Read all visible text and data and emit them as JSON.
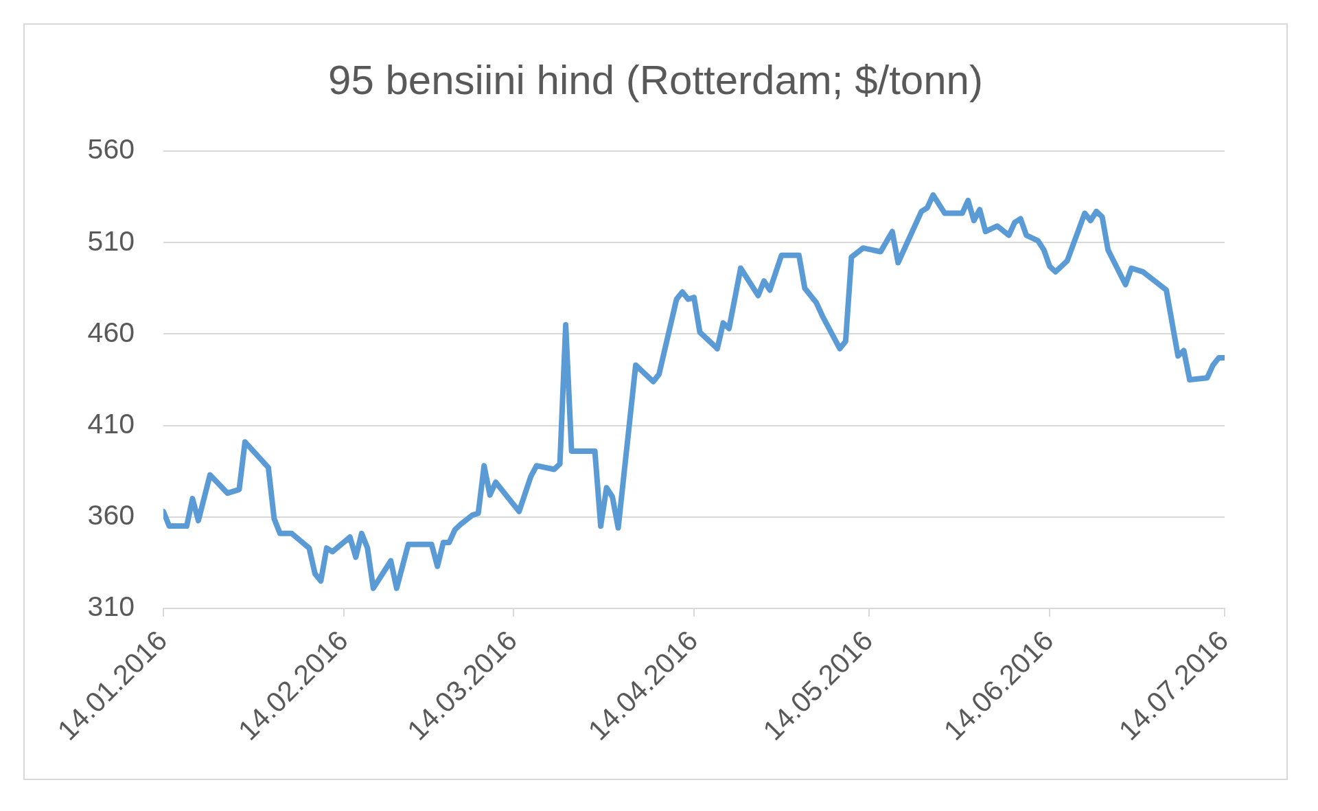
{
  "chart_data": {
    "type": "line",
    "title": "95 bensiini hind (Rotterdam; $/tonn)",
    "x": [
      "2016-01-14",
      "2016-01-15",
      "2016-01-18",
      "2016-01-19",
      "2016-01-20",
      "2016-01-22",
      "2016-01-25",
      "2016-01-27",
      "2016-01-28",
      "2016-02-01",
      "2016-02-02",
      "2016-02-03",
      "2016-02-05",
      "2016-02-08",
      "2016-02-09",
      "2016-02-10",
      "2016-02-11",
      "2016-02-12",
      "2016-02-15",
      "2016-02-16",
      "2016-02-17",
      "2016-02-18",
      "2016-02-19",
      "2016-02-22",
      "2016-02-23",
      "2016-02-25",
      "2016-02-29",
      "2016-03-01",
      "2016-03-02",
      "2016-03-03",
      "2016-03-04",
      "2016-03-05",
      "2016-03-07",
      "2016-03-08",
      "2016-03-09",
      "2016-03-10",
      "2016-03-11",
      "2016-03-15",
      "2016-03-17",
      "2016-03-18",
      "2016-03-21",
      "2016-03-22",
      "2016-03-23",
      "2016-03-24",
      "2016-03-28",
      "2016-03-29",
      "2016-03-30",
      "2016-03-31",
      "2016-04-01",
      "2016-04-04",
      "2016-04-07",
      "2016-04-08",
      "2016-04-11",
      "2016-04-12",
      "2016-04-13",
      "2016-04-14",
      "2016-04-15",
      "2016-04-18",
      "2016-04-19",
      "2016-04-20",
      "2016-04-22",
      "2016-04-25",
      "2016-04-26",
      "2016-04-27",
      "2016-04-29",
      "2016-05-02",
      "2016-05-03",
      "2016-05-05",
      "2016-05-06",
      "2016-05-09",
      "2016-05-10",
      "2016-05-11",
      "2016-05-13",
      "2016-05-16",
      "2016-05-18",
      "2016-05-19",
      "2016-05-23",
      "2016-05-24",
      "2016-05-25",
      "2016-05-27",
      "2016-05-30",
      "2016-05-31",
      "2016-06-01",
      "2016-06-02",
      "2016-06-03",
      "2016-06-05",
      "2016-06-07",
      "2016-06-08",
      "2016-06-09",
      "2016-06-10",
      "2016-06-12",
      "2016-06-13",
      "2016-06-14",
      "2016-06-15",
      "2016-06-17",
      "2016-06-20",
      "2016-06-21",
      "2016-06-22",
      "2016-06-23",
      "2016-06-24",
      "2016-06-27",
      "2016-06-28",
      "2016-06-30",
      "2016-07-02",
      "2016-07-04",
      "2016-07-06",
      "2016-07-07",
      "2016-07-08",
      "2016-07-11",
      "2016-07-12",
      "2016-07-13",
      "2016-07-14"
    ],
    "series": [
      {
        "color": "#5b9bd5",
        "values": [
          363,
          355,
          355,
          370,
          358,
          383,
          373,
          375,
          401,
          387,
          359,
          351,
          351,
          343,
          329,
          325,
          343,
          341,
          349,
          338,
          351,
          343,
          321,
          336,
          321,
          345,
          345,
          333,
          346,
          346,
          353,
          356,
          361,
          362,
          388,
          372,
          379,
          363,
          382,
          388,
          386,
          389,
          465,
          396,
          396,
          355,
          376,
          371,
          354,
          443,
          434,
          438,
          479,
          483,
          479,
          480,
          461,
          452,
          466,
          463,
          496,
          481,
          489,
          484,
          503,
          503,
          485,
          477,
          470,
          452,
          456,
          502,
          507,
          505,
          516,
          499,
          527,
          529,
          536,
          526,
          526,
          533,
          522,
          528,
          516,
          519,
          514,
          521,
          523,
          514,
          511,
          506,
          497,
          494,
          500,
          526,
          522,
          527,
          524,
          506,
          487,
          496,
          494,
          489,
          484,
          448,
          451,
          435,
          436,
          443,
          447,
          447
        ]
      }
    ],
    "xlim": [
      "2016-01-14",
      "2016-07-14"
    ],
    "xticks": [
      {
        "value": "2016-01-14",
        "label": "14.01.2016"
      },
      {
        "value": "2016-02-14",
        "label": "14.02.2016"
      },
      {
        "value": "2016-03-14",
        "label": "14.03.2016"
      },
      {
        "value": "2016-04-14",
        "label": "14.04.2016"
      },
      {
        "value": "2016-05-14",
        "label": "14.05.2016"
      },
      {
        "value": "2016-06-14",
        "label": "14.06.2016"
      },
      {
        "value": "2016-07-14",
        "label": "14.07.2016"
      }
    ],
    "ylim": [
      310,
      560
    ],
    "yticks": [
      310,
      360,
      410,
      460,
      510,
      560
    ],
    "grid": "y",
    "legend": false,
    "marker": "none",
    "line_style": "solid"
  }
}
